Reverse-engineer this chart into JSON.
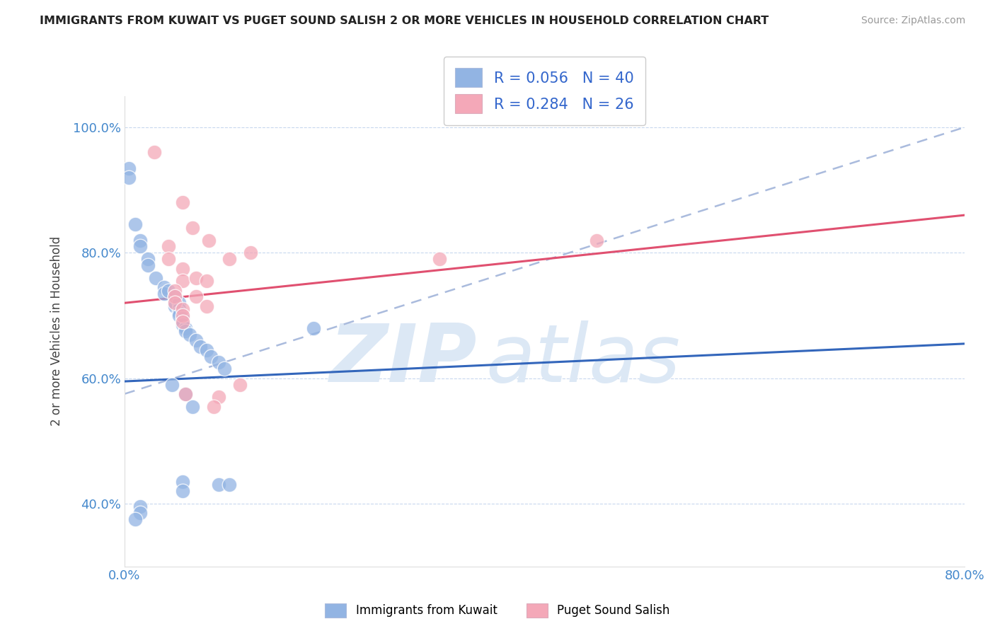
{
  "title": "IMMIGRANTS FROM KUWAIT VS PUGET SOUND SALISH 2 OR MORE VEHICLES IN HOUSEHOLD CORRELATION CHART",
  "source": "Source: ZipAtlas.com",
  "ylabel": "2 or more Vehicles in Household",
  "xmin": 0.0,
  "xmax": 0.8,
  "ymin": 0.3,
  "ymax": 1.05,
  "ytick_positions": [
    0.4,
    0.6,
    0.8,
    1.0
  ],
  "xtick_positions": [
    0.0,
    0.1,
    0.2,
    0.3,
    0.4,
    0.5,
    0.6,
    0.7,
    0.8
  ],
  "color_blue": "#92b4e3",
  "color_pink": "#f4a8b8",
  "color_line_blue": "#3366bb",
  "color_line_pink": "#e05070",
  "color_trend_dashed": "#aabbdd",
  "color_watermark": "#dce8f5",
  "watermark_zip": "ZIP",
  "watermark_atlas": "atlas",
  "blue_dots": [
    [
      0.004,
      0.935
    ],
    [
      0.004,
      0.92
    ],
    [
      0.01,
      0.845
    ],
    [
      0.015,
      0.82
    ],
    [
      0.015,
      0.81
    ],
    [
      0.022,
      0.79
    ],
    [
      0.022,
      0.78
    ],
    [
      0.03,
      0.76
    ],
    [
      0.038,
      0.745
    ],
    [
      0.038,
      0.735
    ],
    [
      0.042,
      0.74
    ],
    [
      0.048,
      0.73
    ],
    [
      0.048,
      0.72
    ],
    [
      0.048,
      0.715
    ],
    [
      0.052,
      0.72
    ],
    [
      0.052,
      0.71
    ],
    [
      0.052,
      0.705
    ],
    [
      0.052,
      0.7
    ],
    [
      0.055,
      0.695
    ],
    [
      0.055,
      0.69
    ],
    [
      0.055,
      0.685
    ],
    [
      0.058,
      0.68
    ],
    [
      0.058,
      0.675
    ],
    [
      0.062,
      0.67
    ],
    [
      0.068,
      0.66
    ],
    [
      0.072,
      0.65
    ],
    [
      0.078,
      0.645
    ],
    [
      0.082,
      0.635
    ],
    [
      0.09,
      0.625
    ],
    [
      0.095,
      0.615
    ],
    [
      0.045,
      0.59
    ],
    [
      0.058,
      0.575
    ],
    [
      0.065,
      0.555
    ],
    [
      0.09,
      0.43
    ],
    [
      0.055,
      0.435
    ],
    [
      0.055,
      0.42
    ],
    [
      0.015,
      0.395
    ],
    [
      0.015,
      0.385
    ],
    [
      0.01,
      0.375
    ],
    [
      0.1,
      0.43
    ],
    [
      0.18,
      0.68
    ]
  ],
  "pink_dots": [
    [
      0.028,
      0.96
    ],
    [
      0.055,
      0.88
    ],
    [
      0.065,
      0.84
    ],
    [
      0.08,
      0.82
    ],
    [
      0.1,
      0.79
    ],
    [
      0.12,
      0.8
    ],
    [
      0.042,
      0.81
    ],
    [
      0.042,
      0.79
    ],
    [
      0.055,
      0.775
    ],
    [
      0.055,
      0.755
    ],
    [
      0.068,
      0.76
    ],
    [
      0.078,
      0.755
    ],
    [
      0.048,
      0.74
    ],
    [
      0.048,
      0.73
    ],
    [
      0.048,
      0.72
    ],
    [
      0.055,
      0.71
    ],
    [
      0.055,
      0.7
    ],
    [
      0.055,
      0.69
    ],
    [
      0.068,
      0.73
    ],
    [
      0.078,
      0.715
    ],
    [
      0.09,
      0.57
    ],
    [
      0.11,
      0.59
    ],
    [
      0.45,
      0.82
    ],
    [
      0.058,
      0.575
    ],
    [
      0.085,
      0.555
    ],
    [
      0.3,
      0.79
    ]
  ],
  "blue_trend": [
    0.0,
    0.595,
    0.8,
    0.655
  ],
  "pink_trend": [
    0.0,
    0.72,
    0.8,
    0.86
  ],
  "dashed_trend": [
    0.0,
    0.575,
    0.8,
    1.0
  ]
}
